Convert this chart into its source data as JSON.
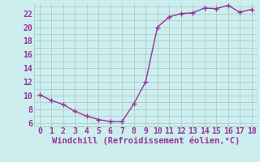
{
  "x": [
    0,
    1,
    2,
    3,
    4,
    5,
    6,
    7,
    8,
    9,
    10,
    11,
    12,
    13,
    14,
    15,
    16,
    17,
    18
  ],
  "y": [
    10.1,
    9.3,
    8.7,
    7.7,
    7.0,
    6.5,
    6.2,
    6.2,
    8.8,
    12.0,
    20.0,
    21.5,
    22.0,
    22.1,
    22.8,
    22.7,
    23.2,
    22.2,
    22.6
  ],
  "line_color": "#993399",
  "marker": "+",
  "marker_size": 4,
  "bg_color": "#cceeee",
  "grid_color": "#aacccc",
  "xlabel": "Windchill (Refroidissement éolien,°C)",
  "xlabel_color": "#993399",
  "xlabel_fontsize": 7.5,
  "tick_color": "#993399",
  "tick_fontsize": 7,
  "ytick_labels": [
    "6",
    "8",
    "10",
    "12",
    "14",
    "16",
    "18",
    "20",
    "22"
  ],
  "ytick_values": [
    6,
    8,
    10,
    12,
    14,
    16,
    18,
    20,
    22
  ],
  "xlim": [
    -0.5,
    18.5
  ],
  "ylim": [
    5.5,
    23.5
  ],
  "line_width": 1.0
}
